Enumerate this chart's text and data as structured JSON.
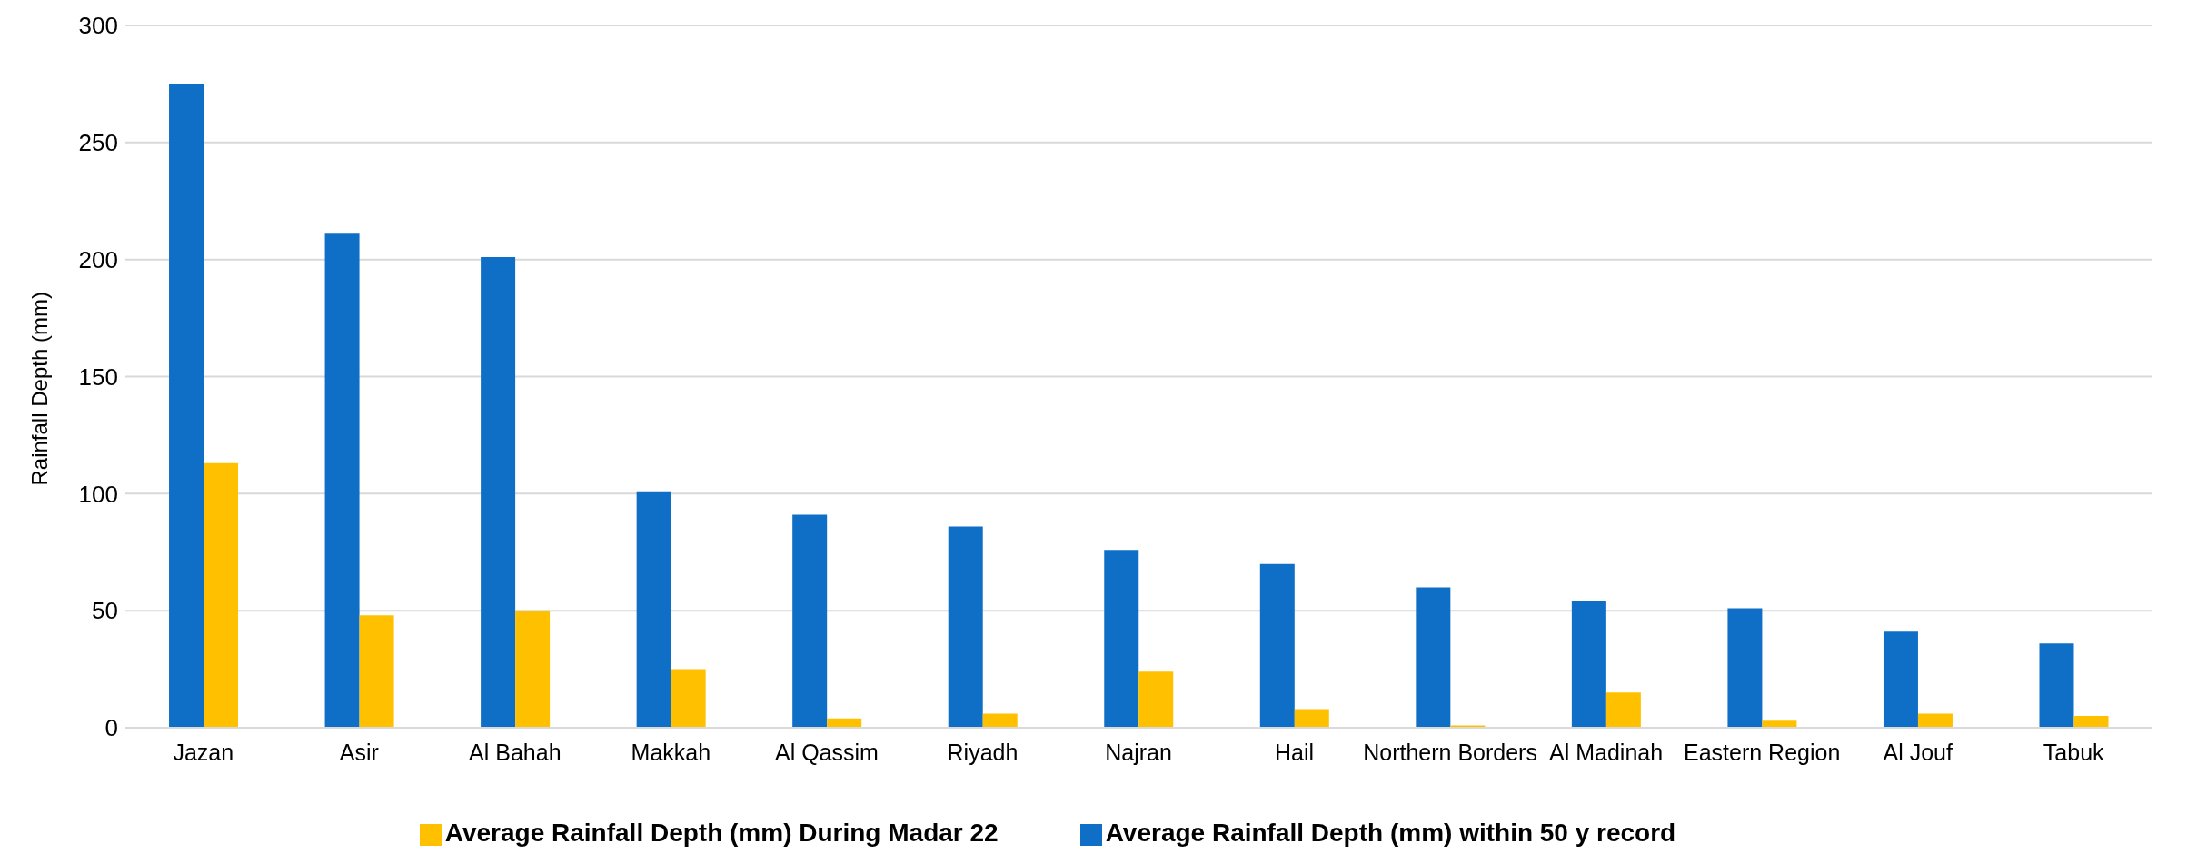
{
  "chart_data": {
    "type": "bar",
    "ylabel": "Rainfall Depth (mm)",
    "categories": [
      "Jazan",
      "Asir",
      "Al Bahah",
      "Makkah",
      "Al Qassim",
      "Riyadh",
      "Najran",
      "Hail",
      "Northern Borders",
      "Al Madinah",
      "Eastern Region",
      "Al Jouf",
      "Tabuk"
    ],
    "series": [
      {
        "name": "Average Rainfall Depth (mm) within 50 y record",
        "color": "#0f6fc6",
        "values": [
          275,
          211,
          201,
          101,
          91,
          86,
          76,
          70,
          60,
          54,
          51,
          41,
          36
        ]
      },
      {
        "name": "Average Rainfall Depth (mm) During Madar 22",
        "color": "#ffc000",
        "values": [
          113,
          48,
          50,
          25,
          4,
          6,
          24,
          8,
          1,
          15,
          3,
          6,
          5
        ]
      }
    ],
    "ylim": [
      0,
      300
    ],
    "yticks": [
      0,
      50,
      100,
      150,
      200,
      250,
      300
    ],
    "grid": "y",
    "legend": "bottom"
  }
}
